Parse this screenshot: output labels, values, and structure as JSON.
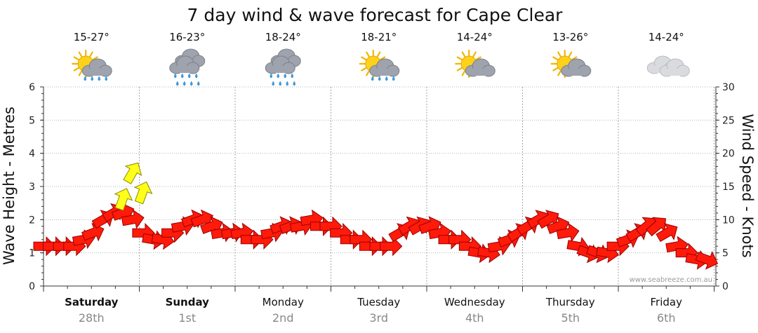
{
  "chart_data": {
    "type": "line",
    "title": "7 day wind & wave forecast for Cape Clear",
    "ylabel_left": "Wave Height - Metres",
    "ylabel_right": "Wind Speed - Knots",
    "ylim_left": [
      0,
      6
    ],
    "ylim_right": [
      0,
      30
    ],
    "yticks_left": [
      0,
      1,
      2,
      3,
      4,
      5,
      6
    ],
    "yticks_right": [
      0,
      5,
      10,
      15,
      20,
      25,
      30
    ],
    "grid": true,
    "credit": "www.seabreeze.com.au",
    "days": [
      {
        "day": "Saturday",
        "date": "28th",
        "temp": "15-27°",
        "icon": "sun-cloud-rain-icon",
        "bold": true
      },
      {
        "day": "Sunday",
        "date": "1st",
        "temp": "16-23°",
        "icon": "cloud-rain-icon",
        "bold": true
      },
      {
        "day": "Monday",
        "date": "2nd",
        "temp": "18-24°",
        "icon": "cloud-rain-icon",
        "bold": false
      },
      {
        "day": "Tuesday",
        "date": "3rd",
        "temp": "18-21°",
        "icon": "sun-cloud-rain-icon",
        "bold": false
      },
      {
        "day": "Wednesday",
        "date": "4th",
        "temp": "14-24°",
        "icon": "sun-cloud-icon",
        "bold": false
      },
      {
        "day": "Thursday",
        "date": "5th",
        "temp": "13-26°",
        "icon": "sun-cloud-icon",
        "bold": false
      },
      {
        "day": "Friday",
        "date": "6th",
        "temp": "14-24°",
        "icon": "cloud-icon",
        "bold": false
      }
    ],
    "x_range_days": [
      0,
      7.5
    ],
    "wind_series": {
      "name": "",
      "x": [
        0.0,
        0.12,
        0.25,
        0.38,
        0.5,
        0.62,
        0.75,
        0.88,
        1.0,
        1.12,
        1.25,
        1.38,
        1.5,
        1.62,
        1.75,
        1.88,
        2.0,
        2.12,
        2.25,
        2.38,
        2.5,
        2.62,
        2.75,
        2.88,
        3.0,
        3.12,
        3.25,
        3.38,
        3.5,
        3.62,
        3.75,
        3.88,
        4.0,
        4.12,
        4.25,
        4.38,
        4.5,
        4.62,
        4.75,
        4.88,
        5.0,
        5.12,
        5.25,
        5.38,
        5.5,
        5.62,
        5.75,
        5.88,
        6.0,
        6.12,
        6.25,
        6.38,
        6.5,
        6.62,
        6.75,
        6.88,
        7.0,
        7.12,
        7.25,
        7.38,
        7.5,
        7.62,
        7.75,
        7.88,
        8.0,
        8.12,
        8.25,
        8.38,
        8.5
      ],
      "knots": [
        6,
        6,
        6,
        6,
        7,
        8,
        10,
        11,
        11,
        10,
        8,
        7,
        7,
        8,
        9,
        10,
        10,
        9,
        8,
        8,
        8,
        7,
        7,
        8,
        9,
        9,
        9,
        10,
        9,
        9,
        8,
        7,
        7,
        6,
        6,
        6,
        8,
        9,
        9,
        9,
        8,
        7,
        7,
        6,
        5,
        5,
        6,
        7,
        8,
        9,
        10,
        10,
        9,
        8,
        6,
        5,
        5,
        5,
        6,
        7,
        8,
        9,
        9,
        8,
        6,
        5,
        4,
        4,
        5
      ],
      "direction_deg": [
        270,
        270,
        270,
        270,
        260,
        250,
        240,
        240,
        250,
        260,
        270,
        280,
        280,
        270,
        260,
        250,
        250,
        250,
        260,
        260,
        260,
        270,
        270,
        260,
        250,
        250,
        260,
        260,
        270,
        270,
        270,
        270,
        270,
        270,
        270,
        270,
        240,
        240,
        240,
        250,
        260,
        270,
        270,
        270,
        280,
        280,
        260,
        250,
        240,
        240,
        240,
        240,
        250,
        260,
        280,
        290,
        290,
        280,
        270,
        250,
        240,
        230,
        230,
        240,
        260,
        270,
        280,
        290,
        300
      ]
    },
    "wind_gust_x": [
      1.0,
      1.12,
      1.25
    ],
    "wind_gust_knots": [
      13,
      17,
      14
    ],
    "wind_gust_direction_deg": [
      200,
      210,
      200
    ]
  }
}
